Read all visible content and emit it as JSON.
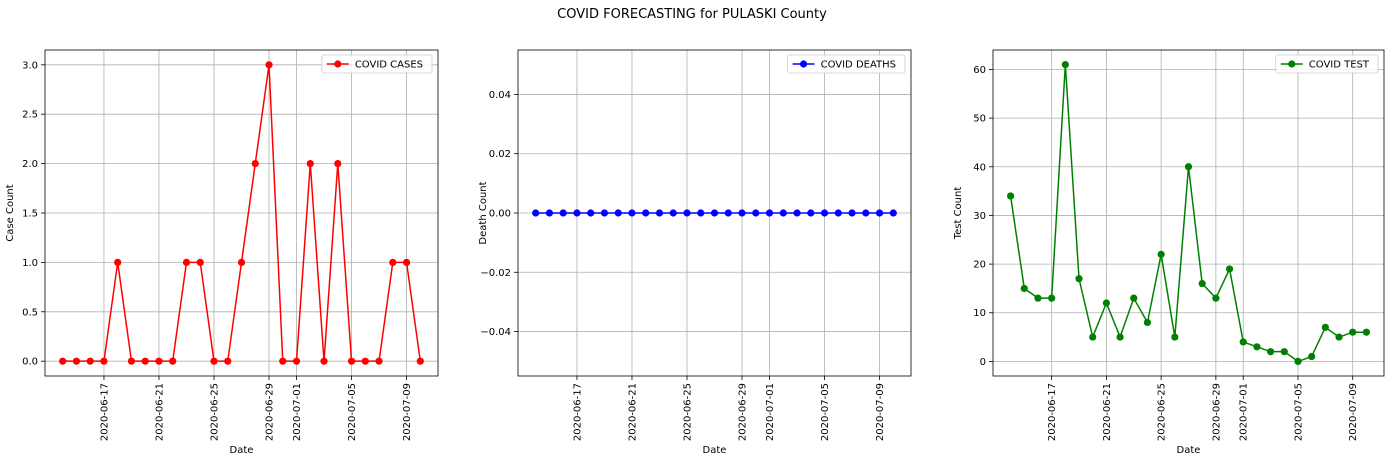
{
  "figure": {
    "suptitle": "COVID FORECASTING for PULASKI County"
  },
  "chart_data": [
    {
      "type": "line",
      "xlabel": "Date",
      "ylabel": "Case Count",
      "x_start": "2020-06-14",
      "x_ticks": [
        "2020-06-17",
        "2020-06-21",
        "2020-06-25",
        "2020-06-29",
        "2020-07-01",
        "2020-07-05",
        "2020-07-09"
      ],
      "y_ticks": [
        "0.0",
        "0.5",
        "1.0",
        "1.5",
        "2.0",
        "2.5",
        "3.0"
      ],
      "ylim": [
        -0.15,
        3.15
      ],
      "grid": true,
      "legend_position": "upper-right",
      "series": [
        {
          "name": "COVID CASES",
          "color": "#ff0000",
          "values": [
            0,
            0,
            0,
            0,
            1,
            0,
            0,
            0,
            0,
            1,
            1,
            0,
            0,
            1,
            2,
            3,
            0,
            0,
            2,
            0,
            2,
            0,
            0,
            0,
            1,
            1,
            0
          ]
        }
      ]
    },
    {
      "type": "line",
      "xlabel": "Date",
      "ylabel": "Death Count",
      "x_start": "2020-06-14",
      "x_ticks": [
        "2020-06-17",
        "2020-06-21",
        "2020-06-25",
        "2020-06-29",
        "2020-07-01",
        "2020-07-05",
        "2020-07-09"
      ],
      "y_ticks": [
        "−0.04",
        "−0.02",
        "0.00",
        "0.02",
        "0.04"
      ],
      "ylim": [
        -0.055,
        0.055
      ],
      "grid": true,
      "legend_position": "upper-right",
      "series": [
        {
          "name": "COVID DEATHS",
          "color": "#0000ff",
          "values": [
            0,
            0,
            0,
            0,
            0,
            0,
            0,
            0,
            0,
            0,
            0,
            0,
            0,
            0,
            0,
            0,
            0,
            0,
            0,
            0,
            0,
            0,
            0,
            0,
            0,
            0,
            0
          ]
        }
      ]
    },
    {
      "type": "line",
      "xlabel": "Date",
      "ylabel": "Test Count",
      "x_start": "2020-06-14",
      "x_ticks": [
        "2020-06-17",
        "2020-06-21",
        "2020-06-25",
        "2020-06-29",
        "2020-07-01",
        "2020-07-05",
        "2020-07-09"
      ],
      "y_ticks": [
        "0",
        "10",
        "20",
        "30",
        "40",
        "50",
        "60"
      ],
      "ylim": [
        -3,
        64
      ],
      "grid": true,
      "legend_position": "upper-right",
      "series": [
        {
          "name": "COVID TEST",
          "color": "#008000",
          "values": [
            34,
            15,
            13,
            13,
            61,
            17,
            5,
            12,
            5,
            13,
            8,
            22,
            5,
            40,
            16,
            13,
            19,
            4,
            3,
            2,
            2,
            0,
            1,
            7,
            5,
            6,
            6
          ]
        }
      ]
    }
  ]
}
